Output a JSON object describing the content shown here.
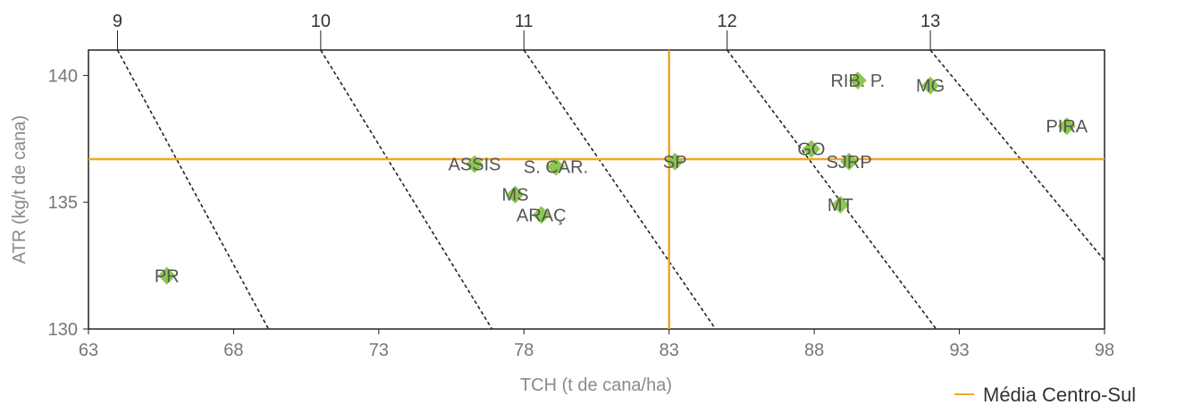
{
  "chart_data": {
    "type": "scatter",
    "xlabel": "TCH (t de cana/ha)",
    "ylabel": "ATR (kg/t de cana)",
    "xlim": [
      63,
      98
    ],
    "ylim": [
      130,
      141
    ],
    "x_ticks": [
      63,
      68,
      73,
      78,
      83,
      88,
      93,
      98
    ],
    "y_ticks": [
      130,
      135,
      140
    ],
    "top_ticks": [
      {
        "label": "9",
        "x": 64
      },
      {
        "label": "10",
        "x": 71
      },
      {
        "label": "11",
        "x": 78
      },
      {
        "label": "12",
        "x": 85
      },
      {
        "label": "13",
        "x": 92
      }
    ],
    "iso_lines": [
      {
        "x1": 64.0,
        "x2": 69.2
      },
      {
        "x1": 71.0,
        "x2": 76.9
      },
      {
        "x1": 78.0,
        "x2": 84.6
      },
      {
        "x1": 85.0,
        "x2": 92.2
      },
      {
        "x1": 92.0,
        "x2": 98.0,
        "y2": 132.7
      }
    ],
    "points": [
      {
        "label": "PR",
        "x": 65.7,
        "y": 132.1
      },
      {
        "label": "ASSIS",
        "x": 76.3,
        "y": 136.5
      },
      {
        "label": "S. CAR.",
        "x": 79.1,
        "y": 136.4
      },
      {
        "label": "MS",
        "x": 77.7,
        "y": 135.3
      },
      {
        "label": "ARAÇ",
        "x": 78.6,
        "y": 134.5
      },
      {
        "label": "SP",
        "x": 83.2,
        "y": 136.6
      },
      {
        "label": "GO",
        "x": 87.9,
        "y": 137.1
      },
      {
        "label": "SJRP",
        "x": 89.2,
        "y": 136.6
      },
      {
        "label": "MT",
        "x": 88.9,
        "y": 134.9
      },
      {
        "label": "RIB. P.",
        "x": 89.5,
        "y": 139.8
      },
      {
        "label": "MG",
        "x": 92.0,
        "y": 139.6
      },
      {
        "label": "PIRA",
        "x": 96.7,
        "y": 138.0
      }
    ],
    "reference": {
      "name": "Média Centro-Sul",
      "x": 83.0,
      "y": 136.7
    },
    "grid": false,
    "legend_position": "bottom-right",
    "colors": {
      "points": "#8cc84b",
      "reference": "#f5a623",
      "iso": "#222222",
      "axis": "#222222"
    }
  }
}
